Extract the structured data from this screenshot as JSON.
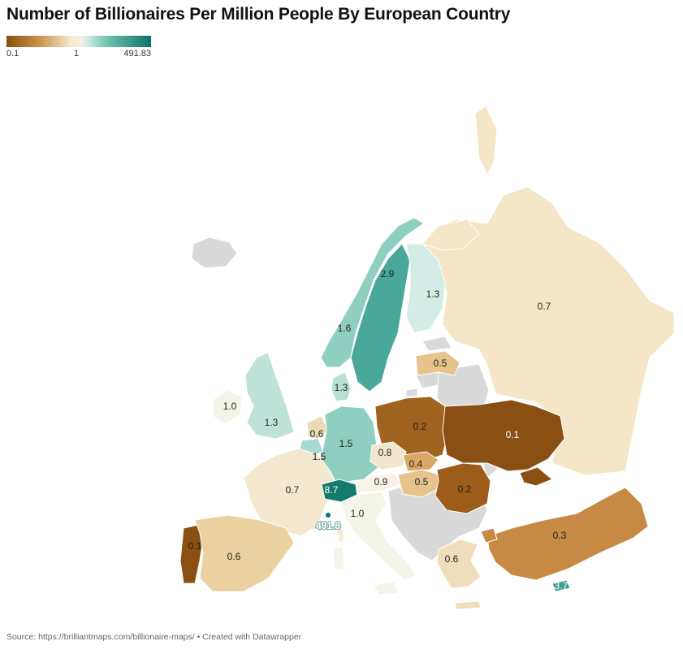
{
  "title": "Number of Billionaires Per Million People By European Country",
  "legend": {
    "min": "0.1",
    "mid": "1",
    "max": "491.83"
  },
  "colors": {
    "no_data": "#d9d9d9",
    "scale_low": "#8a4f12",
    "scale_mid": "#f4f0e0",
    "scale_high": "#0c7268"
  },
  "countries": [
    {
      "id": "russia",
      "label": "0.7",
      "value": 0.7,
      "color": "#f6e6c8"
    },
    {
      "id": "sweden",
      "label": "2.9",
      "value": 2.9,
      "color": "#4aa89a"
    },
    {
      "id": "norway",
      "label": "1.6",
      "value": 1.6,
      "color": "#8fcfc0"
    },
    {
      "id": "finland",
      "label": "1.3",
      "value": 1.3,
      "color": "#d3ede6"
    },
    {
      "id": "latvia",
      "label": "0.5",
      "value": 0.5,
      "color": "#e6c48c"
    },
    {
      "id": "denmark",
      "label": "1.3",
      "value": 1.3,
      "color": "#b7e0d5"
    },
    {
      "id": "ireland",
      "label": "1.0",
      "value": 1.0,
      "color": "#f4f5e8"
    },
    {
      "id": "uk",
      "label": "1.3",
      "value": 1.3,
      "color": "#bfe3d9"
    },
    {
      "id": "netherlands",
      "label": "0.6",
      "value": 0.6,
      "color": "#ecd9b5"
    },
    {
      "id": "belgium",
      "label": "1.5",
      "value": 1.5,
      "color": "#a8dacd"
    },
    {
      "id": "germany",
      "label": "1.5",
      "value": 1.5,
      "color": "#8fcfc0"
    },
    {
      "id": "poland",
      "label": "0.2",
      "value": 0.2,
      "color": "#a0621f"
    },
    {
      "id": "ukraine",
      "label": "0.1",
      "value": 0.1,
      "color": "#8a4f12"
    },
    {
      "id": "czechia",
      "label": "0.8",
      "value": 0.8,
      "color": "#f2e6cd"
    },
    {
      "id": "slovakia",
      "label": "0.4",
      "value": 0.4,
      "color": "#d9a866"
    },
    {
      "id": "austria",
      "label": "0.9",
      "value": 0.9,
      "color": "#f7f3e6"
    },
    {
      "id": "hungary",
      "label": "0.5",
      "value": 0.5,
      "color": "#e6c48c"
    },
    {
      "id": "romania",
      "label": "0.2",
      "value": 0.2,
      "color": "#9c5d1b"
    },
    {
      "id": "france",
      "label": "0.7",
      "value": 0.7,
      "color": "#f4e8cf"
    },
    {
      "id": "switzerland",
      "label": "8.7",
      "value": 8.7,
      "color": "#157a6e"
    },
    {
      "id": "monaco",
      "label": "491.8",
      "value": 491.8,
      "color": "#0c7268"
    },
    {
      "id": "italy",
      "label": "1.0",
      "value": 1.0,
      "color": "#f4f5e8"
    },
    {
      "id": "portugal",
      "label": "0.1",
      "value": 0.1,
      "color": "#8a4f12"
    },
    {
      "id": "spain",
      "label": "0.6",
      "value": 0.6,
      "color": "#ebd0a0"
    },
    {
      "id": "greece",
      "label": "0.6",
      "value": 0.6,
      "color": "#f0ddbb"
    },
    {
      "id": "turkey",
      "label": "0.3",
      "value": 0.3,
      "color": "#c78a44"
    },
    {
      "id": "cyprus",
      "label": "3.7",
      "value": 3.7,
      "color": "#3e9e91"
    }
  ],
  "source": "Source: https://brilliantmaps.com/billionaire-maps/ • Created with Datawrapper"
}
